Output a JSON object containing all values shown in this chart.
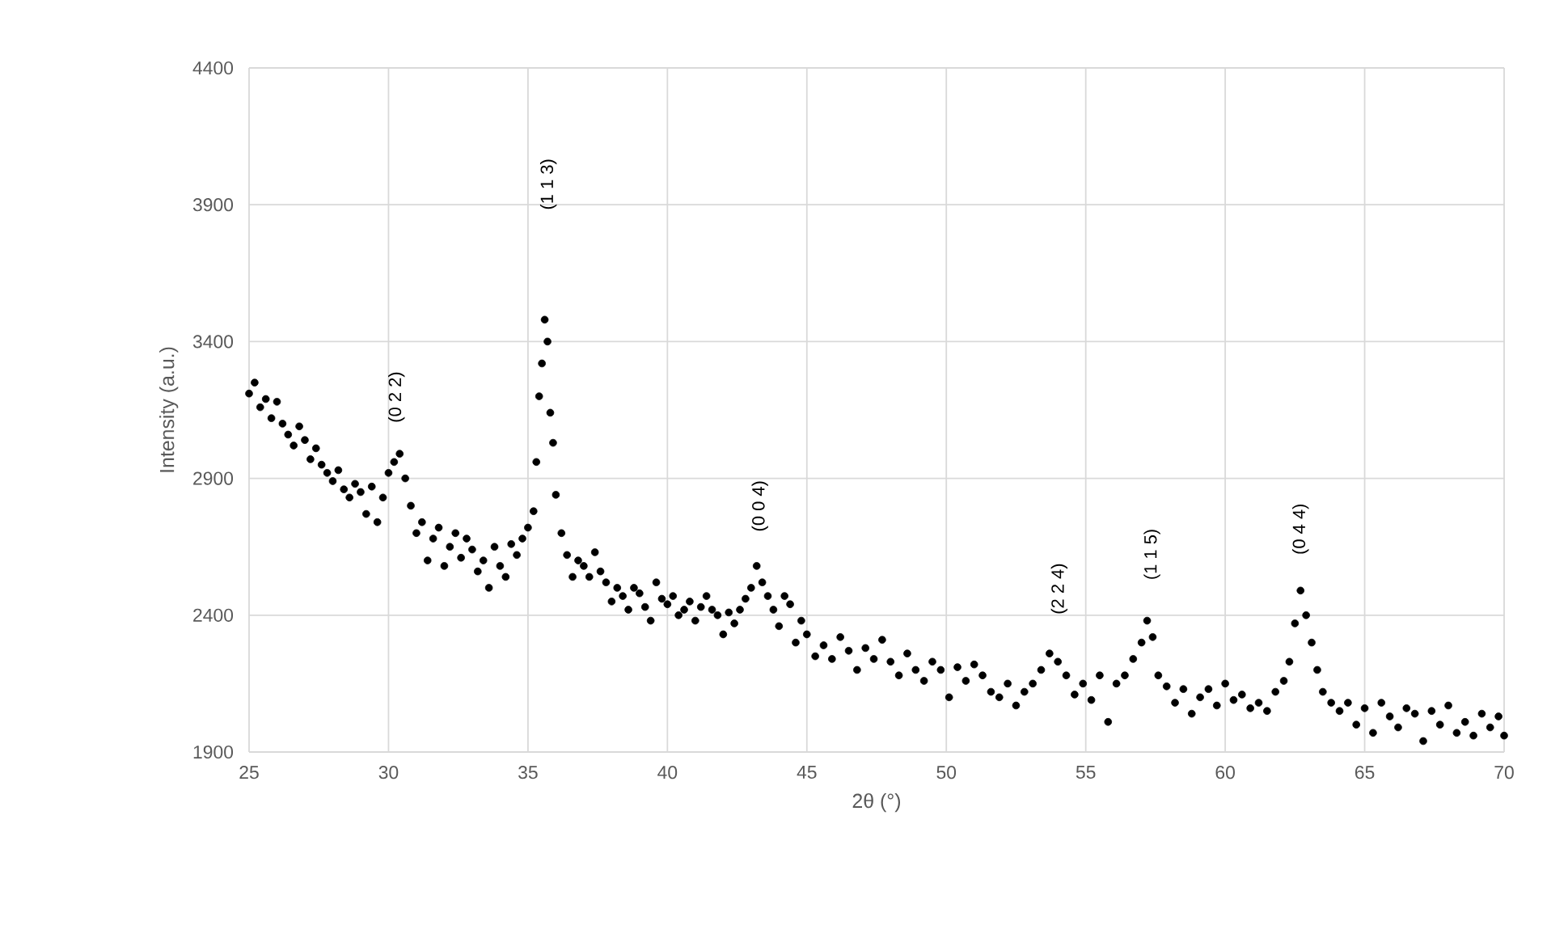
{
  "chart_data": {
    "type": "scatter",
    "xlabel": "2θ (°)",
    "ylabel": "Intensity (a.u.)",
    "xlim": [
      25,
      70
    ],
    "ylim": [
      1900,
      4400
    ],
    "xticks": [
      25,
      30,
      35,
      40,
      45,
      50,
      55,
      60,
      65,
      70
    ],
    "yticks": [
      1900,
      2400,
      2900,
      3400,
      3900,
      4400
    ],
    "grid": true,
    "marker": "circle",
    "annotations": [
      {
        "text": "(0 2 2)",
        "x": 30.4,
        "y": 2990
      },
      "(1 1 3)",
      {
        "text": "(0 0 4)",
        "x": 43.2,
        "y": 2580
      },
      {
        "text": "(2 2 4)",
        "x": 53.7,
        "y": 2260
      },
      {
        "text": "(1 1 5)",
        "x": 57.2,
        "y": 2380
      },
      {
        "text": "(0 4 4)",
        "x": 62.7,
        "y": 2490
      }
    ],
    "series": [
      {
        "color": "#000000",
        "x": [
          25.0,
          25.2,
          25.4,
          25.6,
          25.8,
          26.0,
          26.2,
          26.4,
          26.6,
          26.8,
          27.0,
          27.2,
          27.4,
          27.6,
          27.8,
          28.0,
          28.2,
          28.4,
          28.6,
          28.8,
          29.0,
          29.2,
          29.4,
          29.6,
          29.8,
          30.0,
          30.2,
          30.4,
          30.6,
          30.8,
          31.0,
          31.2,
          31.4,
          31.6,
          31.8,
          32.0,
          32.2,
          32.4,
          32.6,
          32.8,
          33.0,
          33.2,
          33.4,
          33.6,
          33.8,
          34.0,
          34.2,
          34.4,
          34.6,
          34.8,
          35.0,
          35.2,
          35.3,
          35.4,
          35.5,
          35.6,
          35.7,
          35.8,
          35.9,
          36.0,
          36.2,
          36.4,
          36.6,
          36.8,
          37.0,
          37.2,
          37.4,
          37.6,
          37.8,
          38.0,
          38.2,
          38.4,
          38.6,
          38.8,
          39.0,
          39.2,
          39.4,
          39.6,
          39.8,
          40.0,
          40.2,
          40.4,
          40.6,
          40.8,
          41.0,
          41.2,
          41.4,
          41.6,
          41.8,
          42.0,
          42.2,
          42.4,
          42.6,
          42.8,
          43.0,
          43.2,
          43.4,
          43.6,
          43.8,
          44.0,
          44.2,
          44.4,
          44.6,
          44.8,
          45.0,
          45.3,
          45.6,
          45.9,
          46.2,
          46.5,
          46.8,
          47.1,
          47.4,
          47.7,
          48.0,
          48.3,
          48.6,
          48.9,
          49.2,
          49.5,
          49.8,
          50.1,
          50.4,
          50.7,
          51.0,
          51.3,
          51.6,
          51.9,
          52.2,
          52.5,
          52.8,
          53.1,
          53.4,
          53.7,
          54.0,
          54.3,
          54.6,
          54.9,
          55.2,
          55.5,
          55.8,
          56.1,
          56.4,
          56.7,
          57.0,
          57.2,
          57.4,
          57.6,
          57.9,
          58.2,
          58.5,
          58.8,
          59.1,
          59.4,
          59.7,
          60.0,
          60.3,
          60.6,
          60.9,
          61.2,
          61.5,
          61.8,
          62.1,
          62.3,
          62.5,
          62.7,
          62.9,
          63.1,
          63.3,
          63.5,
          63.8,
          64.1,
          64.4,
          64.7,
          65.0,
          65.3,
          65.6,
          65.9,
          66.2,
          66.5,
          66.8,
          67.1,
          67.4,
          67.7,
          68.0,
          68.3,
          68.6,
          68.9,
          69.2,
          69.5,
          69.8,
          70.0
        ],
        "values": [
          3210,
          3250,
          3160,
          3190,
          3120,
          3180,
          3100,
          3060,
          3020,
          3090,
          3040,
          2970,
          3010,
          2950,
          2920,
          2890,
          2930,
          2860,
          2830,
          2880,
          2850,
          2770,
          2870,
          2740,
          2830,
          2920,
          2960,
          2990,
          2900,
          2800,
          2700,
          2740,
          2600,
          2680,
          2720,
          2580,
          2650,
          2700,
          2610,
          2680,
          2640,
          2560,
          2600,
          2500,
          2650,
          2580,
          2540,
          2660,
          2620,
          2680,
          2720,
          2780,
          2960,
          3200,
          3320,
          3480,
          3400,
          3140,
          3030,
          2840,
          2700,
          2620,
          2540,
          2600,
          2580,
          2540,
          2630,
          2560,
          2520,
          2450,
          2500,
          2470,
          2420,
          2500,
          2480,
          2430,
          2380,
          2520,
          2460,
          2440,
          2470,
          2400,
          2420,
          2450,
          2380,
          2430,
          2470,
          2420,
          2400,
          2330,
          2410,
          2370,
          2420,
          2460,
          2500,
          2580,
          2520,
          2470,
          2420,
          2360,
          2470,
          2440,
          2300,
          2380,
          2330,
          2250,
          2290,
          2240,
          2320,
          2270,
          2200,
          2280,
          2240,
          2310,
          2230,
          2180,
          2260,
          2200,
          2160,
          2230,
          2200,
          2100,
          2210,
          2160,
          2220,
          2180,
          2120,
          2100,
          2150,
          2070,
          2120,
          2150,
          2200,
          2260,
          2230,
          2180,
          2110,
          2150,
          2090,
          2180,
          2010,
          2150,
          2180,
          2240,
          2300,
          2380,
          2320,
          2180,
          2140,
          2080,
          2130,
          2040,
          2100,
          2130,
          2070,
          2150,
          2090,
          2110,
          2060,
          2080,
          2050,
          2120,
          2160,
          2230,
          2370,
          2490,
          2400,
          2300,
          2200,
          2120,
          2080,
          2050,
          2080,
          2000,
          2060,
          1970,
          2080,
          2030,
          1990,
          2060,
          2040,
          1940,
          2050,
          2000,
          2070,
          1970,
          2010,
          1960,
          2040,
          1990,
          2030,
          1960
        ]
      }
    ]
  }
}
